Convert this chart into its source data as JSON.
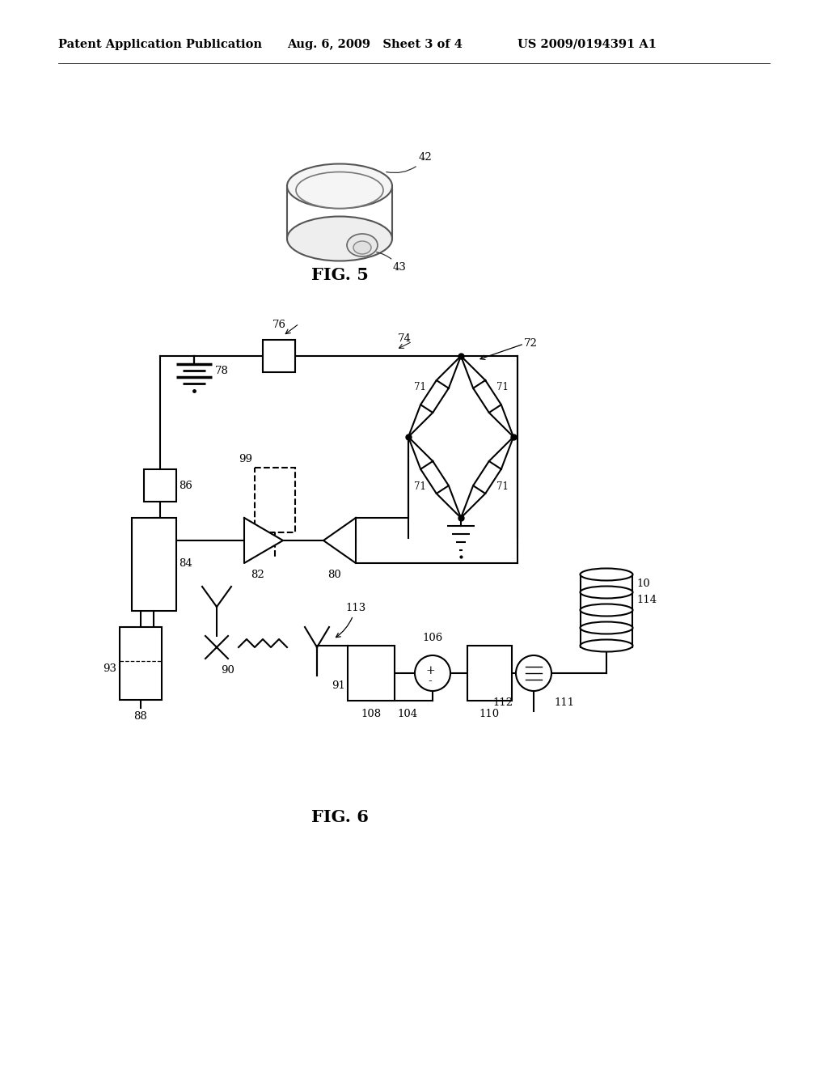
{
  "bg_color": "#ffffff",
  "header_left": "Patent Application Publication",
  "header_mid": "Aug. 6, 2009   Sheet 3 of 4",
  "header_right": "US 2009/0194391 A1",
  "fig5_label": "FIG. 5",
  "fig6_label": "FIG. 6",
  "lw": 1.5,
  "color": "#000000",
  "header_fontsize": 10.5,
  "label_fontsize": 9.5,
  "fig_label_fontsize": 15
}
